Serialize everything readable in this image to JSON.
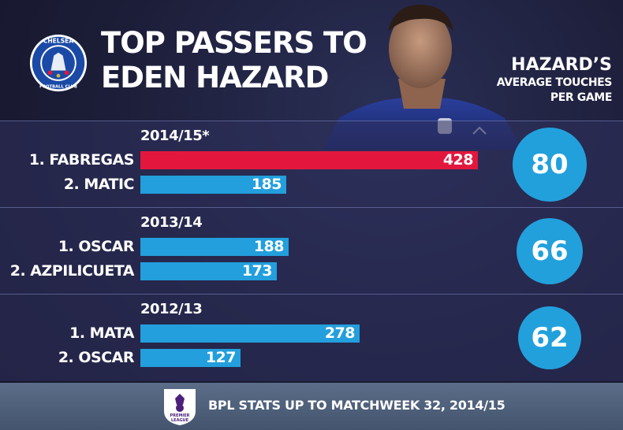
{
  "header": {
    "title_line1": "TOP PASSERS TO",
    "title_line2": "EDEN HAZARD",
    "side_heading_line1": "HAZARD’S",
    "side_heading_line2": "AVERAGE TOUCHES",
    "side_heading_line3": "PER GAME",
    "crest_text_top": "CHELSEA",
    "crest_text_bottom": "FOOTBALL CLUB"
  },
  "colors": {
    "bar_highlight": "#e3173e",
    "bar_default": "#229fdc",
    "circle": "#22a0dc",
    "section_band": "#30325e"
  },
  "chart_data": {
    "type": "bar",
    "orientation": "horizontal",
    "value_label": "passes to Hazard",
    "groups": [
      {
        "season": "2014/15*",
        "players": [
          "1. FABREGAS",
          "2. MATIC"
        ],
        "values": [
          428,
          185
        ],
        "highlight": [
          true,
          false
        ],
        "average_touches": 80
      },
      {
        "season": "2013/14",
        "players": [
          "1. OSCAR",
          "2. AZPILICUETA"
        ],
        "values": [
          188,
          173
        ],
        "highlight": [
          false,
          false
        ],
        "average_touches": 66
      },
      {
        "season": "2012/13",
        "players": [
          "1. MATA",
          "2. OSCAR"
        ],
        "values": [
          278,
          127
        ],
        "highlight": [
          false,
          false
        ],
        "average_touches": 62
      }
    ],
    "xlim": [
      0,
      428
    ]
  },
  "footer": {
    "text": "BPL STATS UP TO MATCHWEEK 32, 2014/15",
    "logo_text": "PREMIER LEAGUE"
  }
}
